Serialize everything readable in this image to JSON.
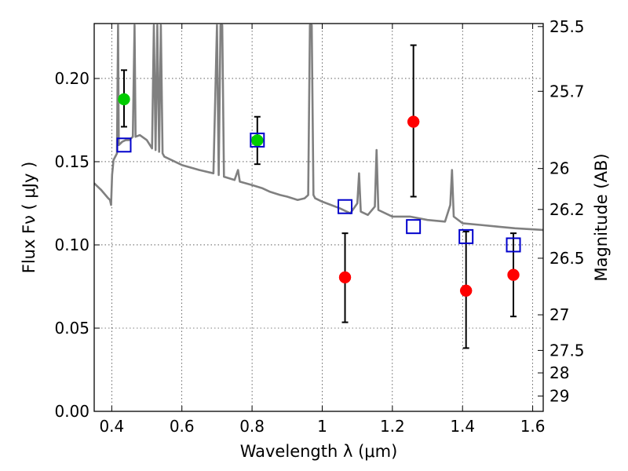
{
  "chart_data": {
    "type": "scatter",
    "xlabel": "Wavelength  λ (μm)",
    "ylabel": "Flux  Fν  ( μJy )",
    "ylabel_right": "Magnitude (AB)",
    "xlim": [
      0.35,
      1.63
    ],
    "ylim": [
      0.0,
      0.233
    ],
    "grid": true,
    "x_ticks": [
      {
        "value": 0.4,
        "label": "0.4"
      },
      {
        "value": 0.6,
        "label": "0.6"
      },
      {
        "value": 0.8,
        "label": "0.8"
      },
      {
        "value": 1.0,
        "label": "1"
      },
      {
        "value": 1.2,
        "label": "1.2"
      },
      {
        "value": 1.4,
        "label": "1.4"
      },
      {
        "value": 1.6,
        "label": "1.6"
      }
    ],
    "y_ticks": [
      {
        "value": 0.0,
        "label": "0.00"
      },
      {
        "value": 0.05,
        "label": "0.05"
      },
      {
        "value": 0.1,
        "label": "0.10"
      },
      {
        "value": 0.15,
        "label": "0.15"
      },
      {
        "value": 0.2,
        "label": "0.20"
      }
    ],
    "right_ticks": [
      {
        "label": "25.5",
        "flux": 0.2312
      },
      {
        "label": "25.7",
        "flux": 0.1923
      },
      {
        "label": "26",
        "flux": 0.1459
      },
      {
        "label": "26.2",
        "flux": 0.1213
      },
      {
        "label": "26.5",
        "flux": 0.092
      },
      {
        "label": "27",
        "flux": 0.058
      },
      {
        "label": "27.5",
        "flux": 0.0366
      },
      {
        "label": "28",
        "flux": 0.0231
      },
      {
        "label": "29",
        "flux": 0.0092
      }
    ],
    "series": [
      {
        "kind": "line",
        "color": "#808080",
        "points": [
          [
            0.35,
            0.137
          ],
          [
            0.37,
            0.133
          ],
          [
            0.39,
            0.128
          ],
          [
            0.395,
            0.127
          ],
          [
            0.398,
            0.124
          ],
          [
            0.401,
            0.142
          ],
          [
            0.405,
            0.151
          ],
          [
            0.41,
            0.153
          ],
          [
            0.415,
            0.155
          ],
          [
            0.418,
            0.232
          ],
          [
            0.42,
            0.16
          ],
          [
            0.43,
            0.162
          ],
          [
            0.44,
            0.163
          ],
          [
            0.45,
            0.163
          ],
          [
            0.46,
            0.165
          ],
          [
            0.465,
            0.232
          ],
          [
            0.468,
            0.165
          ],
          [
            0.48,
            0.166
          ],
          [
            0.5,
            0.163
          ],
          [
            0.515,
            0.158
          ],
          [
            0.52,
            0.232
          ],
          [
            0.525,
            0.157
          ],
          [
            0.53,
            0.232
          ],
          [
            0.535,
            0.156
          ],
          [
            0.54,
            0.232
          ],
          [
            0.545,
            0.155
          ],
          [
            0.55,
            0.153
          ],
          [
            0.6,
            0.148
          ],
          [
            0.65,
            0.145
          ],
          [
            0.69,
            0.143
          ],
          [
            0.7,
            0.232
          ],
          [
            0.705,
            0.142
          ],
          [
            0.71,
            0.232
          ],
          [
            0.715,
            0.232
          ],
          [
            0.72,
            0.141
          ],
          [
            0.75,
            0.139
          ],
          [
            0.76,
            0.145
          ],
          [
            0.765,
            0.138
          ],
          [
            0.8,
            0.136
          ],
          [
            0.83,
            0.134
          ],
          [
            0.85,
            0.132
          ],
          [
            0.88,
            0.13
          ],
          [
            0.9,
            0.129
          ],
          [
            0.93,
            0.127
          ],
          [
            0.95,
            0.128
          ],
          [
            0.96,
            0.13
          ],
          [
            0.965,
            0.232
          ],
          [
            0.97,
            0.232
          ],
          [
            0.975,
            0.13
          ],
          [
            0.98,
            0.128
          ],
          [
            1.0,
            0.126
          ],
          [
            1.05,
            0.122
          ],
          [
            1.08,
            0.119
          ],
          [
            1.1,
            0.125
          ],
          [
            1.105,
            0.143
          ],
          [
            1.11,
            0.12
          ],
          [
            1.13,
            0.118
          ],
          [
            1.15,
            0.123
          ],
          [
            1.155,
            0.157
          ],
          [
            1.16,
            0.121
          ],
          [
            1.2,
            0.117
          ],
          [
            1.25,
            0.117
          ],
          [
            1.3,
            0.115
          ],
          [
            1.35,
            0.114
          ],
          [
            1.365,
            0.124
          ],
          [
            1.37,
            0.145
          ],
          [
            1.375,
            0.117
          ],
          [
            1.4,
            0.113
          ],
          [
            1.45,
            0.112
          ],
          [
            1.5,
            0.111
          ],
          [
            1.55,
            0.11
          ],
          [
            1.63,
            0.109
          ]
        ]
      },
      {
        "kind": "marker",
        "shape": "circle",
        "color": "#00cc00",
        "points": [
          {
            "x": 0.435,
            "y": 0.1875,
            "yerr_low": 0.171,
            "yerr_high": 0.205
          },
          {
            "x": 0.815,
            "y": 0.1628,
            "yerr_low": 0.1485,
            "yerr_high": 0.177
          }
        ]
      },
      {
        "kind": "marker",
        "shape": "circle",
        "color": "#ff0000",
        "points": [
          {
            "x": 1.065,
            "y": 0.0805,
            "yerr_low": 0.0535,
            "yerr_high": 0.107
          },
          {
            "x": 1.26,
            "y": 0.174,
            "yerr_low": 0.129,
            "yerr_high": 0.22
          },
          {
            "x": 1.41,
            "y": 0.0725,
            "yerr_low": 0.038,
            "yerr_high": 0.108
          },
          {
            "x": 1.545,
            "y": 0.082,
            "yerr_low": 0.057,
            "yerr_high": 0.107
          }
        ]
      },
      {
        "kind": "marker",
        "shape": "open-square",
        "color": "#0000cc",
        "points": [
          {
            "x": 0.435,
            "y": 0.16
          },
          {
            "x": 0.815,
            "y": 0.163
          },
          {
            "x": 1.065,
            "y": 0.123
          },
          {
            "x": 1.26,
            "y": 0.111
          },
          {
            "x": 1.41,
            "y": 0.105
          },
          {
            "x": 1.545,
            "y": 0.1
          }
        ]
      }
    ]
  }
}
